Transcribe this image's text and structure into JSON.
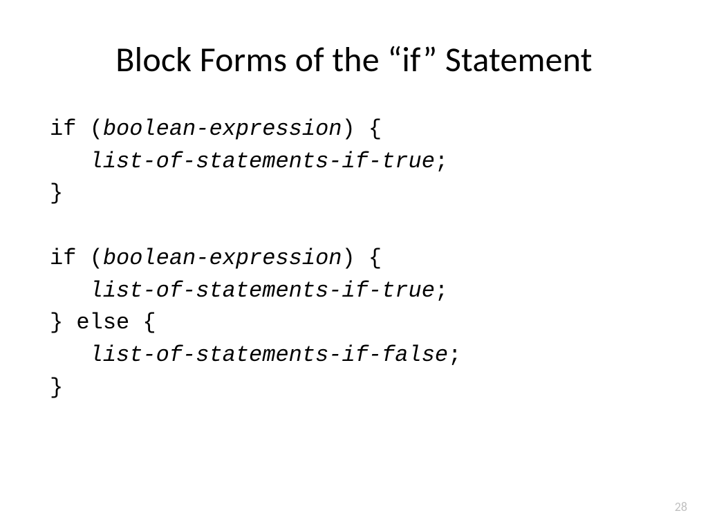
{
  "slide": {
    "title": "Block Forms of the “if” Statement",
    "title_fontsize": 50,
    "title_color": "#000000",
    "page_number": "28",
    "pagenum_color": "#bfbfbf",
    "pagenum_fontsize": 18,
    "background_color": "#ffffff",
    "code": {
      "font_family": "Consolas",
      "font_size": 32,
      "line_height": 1.46,
      "text_color": "#000000",
      "lines": [
        {
          "segments": [
            {
              "text": "if (",
              "italic": false
            },
            {
              "text": "boolean-expression",
              "italic": true
            },
            {
              "text": ") {",
              "italic": false
            }
          ]
        },
        {
          "segments": [
            {
              "text": "   ",
              "italic": false
            },
            {
              "text": "list-of-statements-if-true",
              "italic": true
            },
            {
              "text": ";",
              "italic": false
            }
          ]
        },
        {
          "segments": [
            {
              "text": "}",
              "italic": false
            }
          ]
        },
        {
          "segments": [
            {
              "text": "",
              "italic": false
            }
          ]
        },
        {
          "segments": [
            {
              "text": "if (",
              "italic": false
            },
            {
              "text": "boolean-expression",
              "italic": true
            },
            {
              "text": ") {",
              "italic": false
            }
          ]
        },
        {
          "segments": [
            {
              "text": "   ",
              "italic": false
            },
            {
              "text": "list-of-statements-if-true",
              "italic": true
            },
            {
              "text": ";",
              "italic": false
            }
          ]
        },
        {
          "segments": [
            {
              "text": "} else {",
              "italic": false
            }
          ]
        },
        {
          "segments": [
            {
              "text": "   ",
              "italic": false
            },
            {
              "text": "list-of-statements-if-false",
              "italic": true
            },
            {
              "text": ";",
              "italic": false
            }
          ]
        },
        {
          "segments": [
            {
              "text": "}",
              "italic": false
            }
          ]
        }
      ]
    }
  }
}
